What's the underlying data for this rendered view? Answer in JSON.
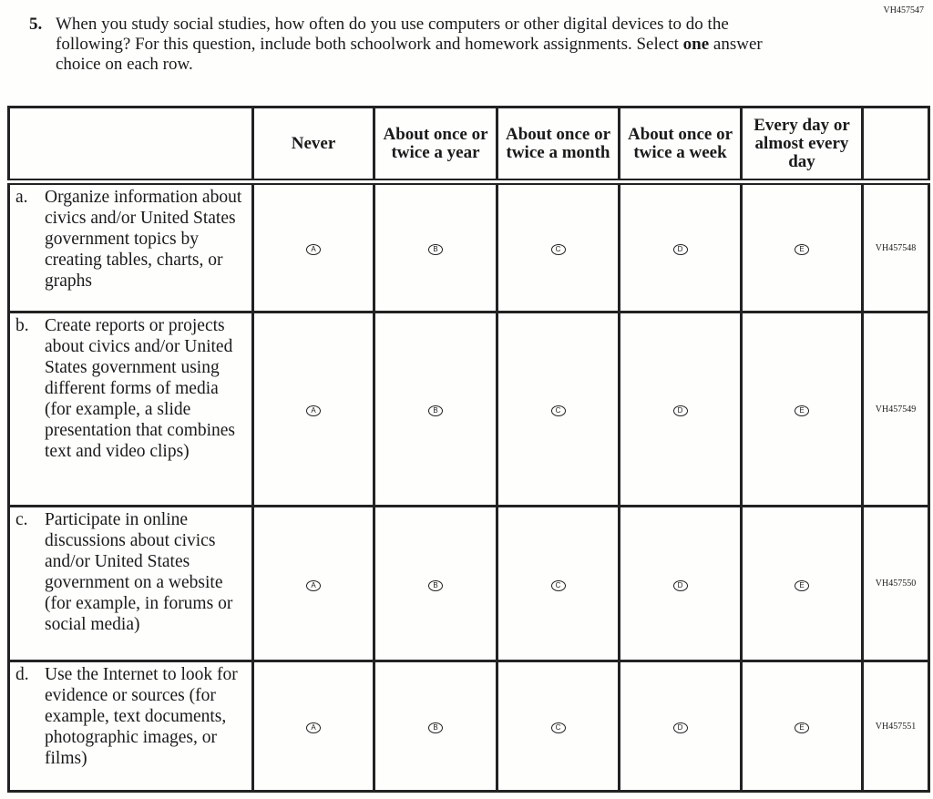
{
  "question": {
    "id": "VH457547",
    "number": "5.",
    "text_before": "When you study social studies, how often do you use computers or other digital devices to do the following? For this question, include both schoolwork and homework assignments. Select ",
    "text_bold": "one",
    "text_after": " answer choice on each row."
  },
  "columns": [
    "Never",
    "About once or twice a year",
    "About once or twice a month",
    "About once or twice a week",
    "Every day or almost every day"
  ],
  "options": [
    "A",
    "B",
    "C",
    "D",
    "E"
  ],
  "rows": [
    {
      "letter": "a.",
      "text": "Organize information about civics and/or United States government topics by creating tables, charts, or graphs",
      "id": "VH457548"
    },
    {
      "letter": "b.",
      "text": "Create reports or projects about civics and/or United States government using different forms of media (for example, a slide presentation that combines text and video clips)",
      "id": "VH457549"
    },
    {
      "letter": "c.",
      "text": "Participate in online discussions about civics and/or United States government on a website (for example, in forums or social media)",
      "id": "VH457550"
    },
    {
      "letter": "d.",
      "text": "Use the Internet to look for evidence or sources (for example, text documents, photographic images, or films)",
      "id": "VH457551"
    }
  ]
}
